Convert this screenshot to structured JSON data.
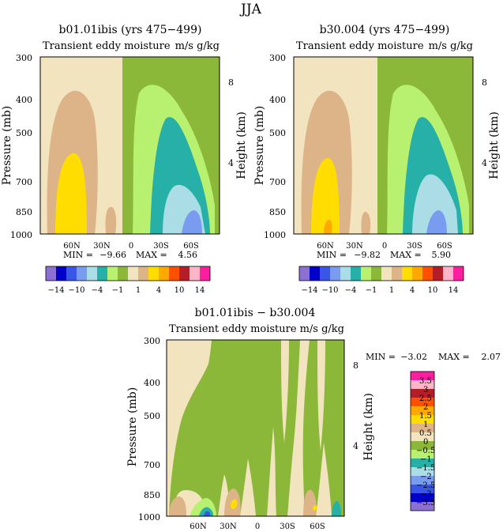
{
  "figure_title": "JJA",
  "colors": {
    "neg14": "#8e6fd3",
    "neg12": "#0000c8",
    "neg10": "#3a56e6",
    "neg8": "#7a9cf0",
    "neg6": "#aadde6",
    "neg4": "#26b0a8",
    "neg2": "#b8f070",
    "neg1": "#8cb83a",
    "pos1": "#f3e4c0",
    "pos2": "#dcb487",
    "pos4": "#ffdd00",
    "pos6": "#ffa800",
    "pos8": "#ff5000",
    "pos10": "#b41e28",
    "pos12": "#ffb4c8",
    "pos14": "#ff1ea0"
  },
  "chart_data": [
    {
      "type": "heatmap",
      "title": "b01.01ibis (yrs 475−499)",
      "subtitle_left": "Transient eddy moisture",
      "subtitle_right": "m/s g/kg",
      "ylabel": "Pressure (mb)",
      "ylabel_right": "Height (km)",
      "y_ticks": [
        "300",
        "400",
        "500",
        "700",
        "850",
        "1000"
      ],
      "y_right_ticks": [
        "8",
        "4"
      ],
      "x_ticks": [
        "60N",
        "30N",
        "0",
        "30S",
        "60S"
      ],
      "min_label": "MIN =",
      "min_value": "−9.66",
      "max_label": "MAX =",
      "max_value": "4.56",
      "colorbar_ticks": [
        "−14",
        "−10",
        "−4",
        "−1",
        "1",
        "4",
        "10",
        "14"
      ]
    },
    {
      "type": "heatmap",
      "title": "b30.004 (yrs 475−499)",
      "subtitle_left": "Transient eddy moisture",
      "subtitle_right": "m/s g/kg",
      "ylabel": "Pressure (mb)",
      "ylabel_right": "Height (km)",
      "y_ticks": [
        "300",
        "400",
        "500",
        "700",
        "850",
        "1000"
      ],
      "y_right_ticks": [
        "8",
        "4"
      ],
      "x_ticks": [
        "60N",
        "30N",
        "0",
        "30S",
        "60S"
      ],
      "min_label": "MIN =",
      "min_value": "−9.82",
      "max_label": "MAX =",
      "max_value": "5.90",
      "colorbar_ticks": [
        "−14",
        "−10",
        "−4",
        "−1",
        "1",
        "4",
        "10",
        "14"
      ]
    },
    {
      "type": "heatmap",
      "title": "b01.01ibis − b30.004",
      "subtitle_left": "Transient eddy moisture",
      "subtitle_right": "m/s g/kg",
      "ylabel": "Pressure (mb)",
      "ylabel_right": "Height (km)",
      "y_ticks": [
        "300",
        "400",
        "500",
        "700",
        "850",
        "1000"
      ],
      "y_right_ticks": [
        "8",
        "4"
      ],
      "x_ticks": [
        "60N",
        "30N",
        "0",
        "30S",
        "60S"
      ],
      "min_label": "MIN =",
      "min_value": "−3.02",
      "max_label": "MAX =",
      "max_value": "2.07",
      "colorbar_ticks": [
        "3.5",
        "3",
        "2.5",
        "2",
        "1.5",
        "1",
        "0.5",
        "0",
        "−0.5",
        "−1",
        "−1.5",
        "−2",
        "−2.5",
        "−3",
        "−3.5"
      ]
    }
  ]
}
